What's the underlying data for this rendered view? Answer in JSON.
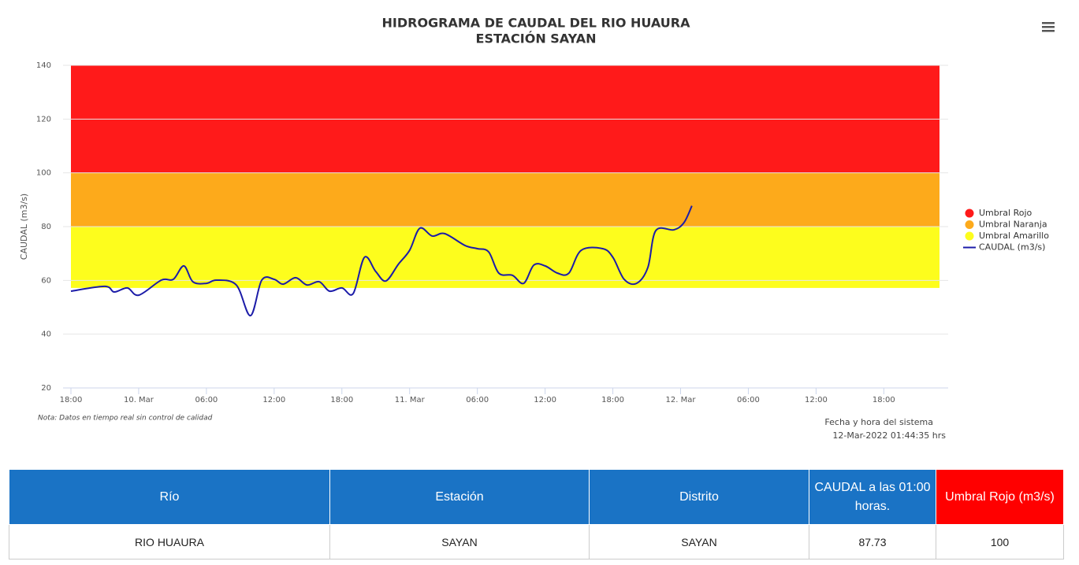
{
  "chart_data": {
    "type": "line",
    "title": "HIDROGRAMA DE CAUDAL DEL RIO HUAURA",
    "subtitle": "ESTACIÓN SAYAN",
    "y_label": "CAUDAL (m3/s)",
    "note": "Nota: Datos en tiempo real sin control de calidad",
    "footer": [
      "Fecha y hora del sistema",
      "12-Mar-2022 01:44:35 hrs"
    ],
    "ylim": [
      20,
      140
    ],
    "yticks": [
      20,
      40,
      60,
      80,
      100,
      120,
      140
    ],
    "grid": true,
    "xlim": [
      0,
      77.7
    ],
    "xticks": [
      {
        "value": 0,
        "label": "18:00"
      },
      {
        "value": 6,
        "label": "10. Mar"
      },
      {
        "value": 12,
        "label": "06:00"
      },
      {
        "value": 18,
        "label": "12:00"
      },
      {
        "value": 24,
        "label": "18:00"
      },
      {
        "value": 30,
        "label": "11. Mar"
      },
      {
        "value": 36,
        "label": "06:00"
      },
      {
        "value": 42,
        "label": "12:00"
      },
      {
        "value": 48,
        "label": "18:00"
      },
      {
        "value": 54,
        "label": "12. Mar"
      },
      {
        "value": 60,
        "label": "06:00"
      },
      {
        "value": 66,
        "label": "12:00"
      },
      {
        "value": 72,
        "label": "18:00"
      }
    ],
    "bands": [
      {
        "name": "Umbral Rojo",
        "color": "#ff1a1a",
        "from": 100,
        "to": 140
      },
      {
        "name": "Umbral Naranja",
        "color": "#fdaa1b",
        "from": 80,
        "to": 100
      },
      {
        "name": "Umbral Amarillo",
        "color": "#fdfd1d",
        "from": 57.2,
        "to": 80
      }
    ],
    "x": [
      0,
      3,
      3.84,
      5,
      6,
      8,
      9.07,
      10,
      10.8,
      12,
      12.9,
      14.65,
      15.9,
      16.9,
      18,
      18.8,
      19.9,
      20.9,
      22,
      22.9,
      24,
      25,
      26,
      27,
      27.9,
      29,
      30,
      30.9,
      32,
      33.1,
      34.9,
      36,
      37,
      37.9,
      39.1,
      40.1,
      41,
      42,
      43.1,
      44.1,
      45.2,
      47.1,
      48,
      49,
      50.1,
      51.1,
      51.8,
      53.4,
      54.3,
      55
    ],
    "series": [
      {
        "name": "CAUDAL (m3/s)",
        "color": "#1c1ca8",
        "values": [
          56.0,
          57.8,
          55.7,
          57.2,
          54.5,
          60.1,
          60.4,
          65.4,
          59.5,
          58.9,
          60.1,
          58.3,
          46.9,
          60.1,
          60.4,
          58.6,
          61.0,
          58.3,
          59.5,
          56.0,
          57.2,
          55.1,
          68.6,
          63.3,
          59.8,
          66.0,
          71.2,
          79.4,
          76.5,
          77.4,
          73.0,
          71.8,
          70.6,
          62.7,
          61.9,
          58.9,
          65.7,
          65.4,
          62.7,
          62.7,
          71.2,
          71.8,
          68.6,
          60.4,
          58.9,
          64.8,
          78.5,
          78.8,
          81.5,
          87.73
        ]
      }
    ]
  },
  "table": {
    "headers": [
      "Río",
      "Estación",
      "Distrito",
      "CAUDAL a las 01:00 horas.",
      "Umbral Rojo (m3/s)"
    ],
    "rows": [
      [
        "RIO HUAURA",
        "SAYAN",
        "SAYAN",
        87.73,
        100
      ]
    ]
  }
}
